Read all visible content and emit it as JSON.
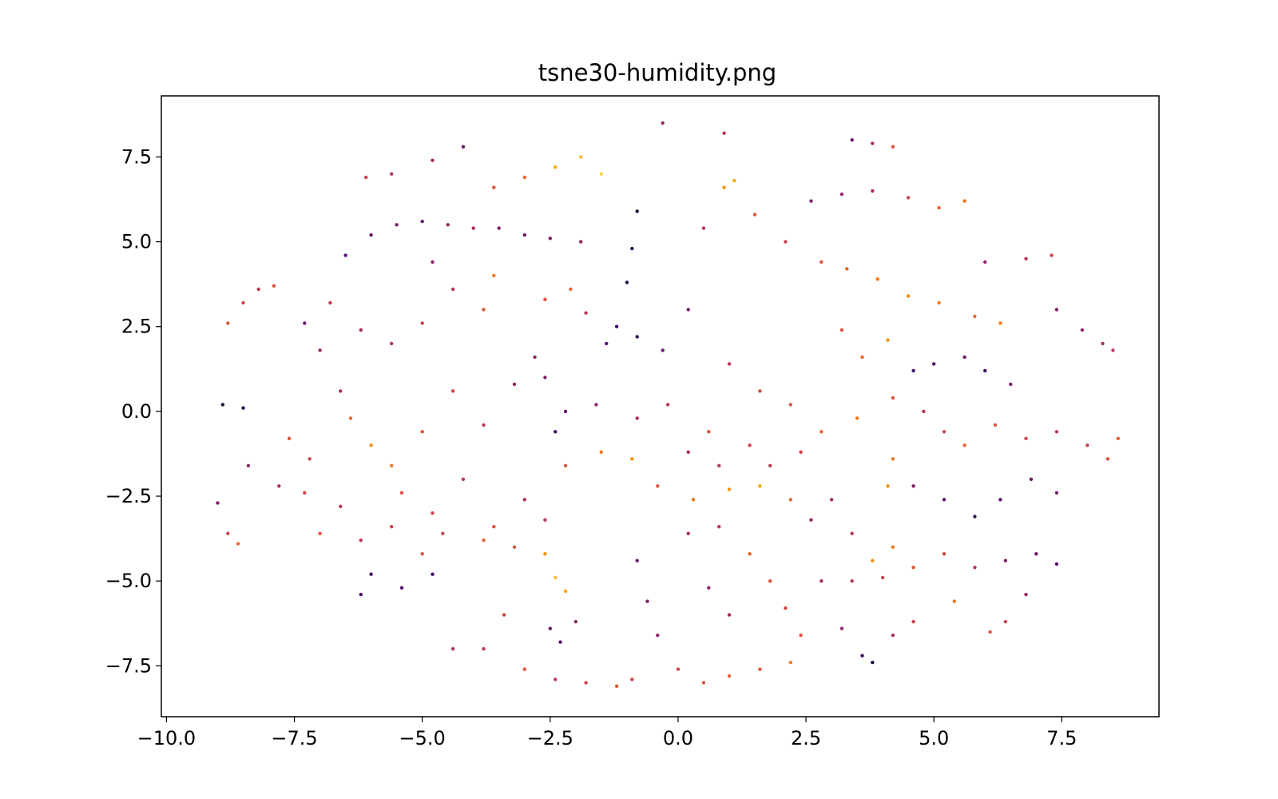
{
  "chart_data": {
    "type": "scatter",
    "title": "tsne30-humidity.png",
    "xlabel": "",
    "ylabel": "",
    "xlim": [
      -10.1,
      9.4
    ],
    "ylim": [
      -9.0,
      9.3
    ],
    "xticks": [
      -10.0,
      -7.5,
      -5.0,
      -2.5,
      0.0,
      2.5,
      5.0,
      7.5
    ],
    "yticks": [
      -7.5,
      -5.0,
      -2.5,
      0.0,
      2.5,
      5.0,
      7.5
    ],
    "xtick_labels": [
      "−10.0",
      "−7.5",
      "−5.0",
      "−2.5",
      "0.0",
      "2.5",
      "5.0",
      "7.5"
    ],
    "ytick_labels": [
      "−7.5",
      "−5.0",
      "−2.5",
      "0.0",
      "2.5",
      "5.0",
      "7.5"
    ],
    "colormap": "inferno",
    "colormap_stops": [
      "#000004",
      "#1b0c41",
      "#4a0c6b",
      "#781c6d",
      "#a52c60",
      "#cf4446",
      "#ed6925",
      "#fb9b06",
      "#f7d13d",
      "#fcffa4"
    ],
    "color_value_range": [
      0,
      1
    ],
    "grid": false,
    "legend": "none",
    "series": [
      {
        "points": [
          [
            -8.8,
            2.6,
            0.6
          ],
          [
            -8.5,
            3.2,
            0.55
          ],
          [
            -8.2,
            3.6,
            0.5
          ],
          [
            -7.9,
            3.7,
            0.6
          ],
          [
            -7.3,
            2.6,
            0.3
          ],
          [
            -7.0,
            1.8,
            0.4
          ],
          [
            -6.5,
            4.6,
            0.25
          ],
          [
            -6.0,
            5.2,
            0.3
          ],
          [
            -5.5,
            5.5,
            0.35
          ],
          [
            -5.0,
            5.6,
            0.3
          ],
          [
            -4.5,
            5.5,
            0.4
          ],
          [
            -4.0,
            5.4,
            0.45
          ],
          [
            -3.5,
            5.4,
            0.35
          ],
          [
            -3.0,
            5.2,
            0.3
          ],
          [
            -2.5,
            5.1,
            0.35
          ],
          [
            -1.9,
            5.0,
            0.4
          ],
          [
            -6.8,
            3.2,
            0.5
          ],
          [
            -6.2,
            2.4,
            0.45
          ],
          [
            -5.6,
            2.0,
            0.5
          ],
          [
            -5.0,
            2.6,
            0.55
          ],
          [
            -4.4,
            3.6,
            0.5
          ],
          [
            -3.8,
            3.0,
            0.6
          ],
          [
            -3.6,
            4.0,
            0.7
          ],
          [
            -4.8,
            4.4,
            0.4
          ],
          [
            -4.2,
            7.8,
            0.3
          ],
          [
            -4.8,
            7.4,
            0.45
          ],
          [
            -5.6,
            7.0,
            0.5
          ],
          [
            -6.1,
            6.9,
            0.55
          ],
          [
            -3.6,
            6.6,
            0.6
          ],
          [
            -3.0,
            6.9,
            0.65
          ],
          [
            -2.4,
            7.2,
            0.8
          ],
          [
            -1.9,
            7.5,
            0.85
          ],
          [
            -1.5,
            7.0,
            0.9
          ],
          [
            -0.3,
            8.5,
            0.4
          ],
          [
            0.9,
            8.2,
            0.5
          ],
          [
            -0.8,
            5.9,
            0.1
          ],
          [
            -0.9,
            4.8,
            0.15
          ],
          [
            -1.0,
            3.8,
            0.12
          ],
          [
            -1.2,
            2.5,
            0.2
          ],
          [
            -1.4,
            2.0,
            0.25
          ],
          [
            -0.8,
            2.2,
            0.15
          ],
          [
            -0.3,
            1.8,
            0.3
          ],
          [
            0.2,
            3.0,
            0.35
          ],
          [
            -2.6,
            3.3,
            0.6
          ],
          [
            -2.1,
            3.6,
            0.65
          ],
          [
            -1.8,
            2.9,
            0.5
          ],
          [
            -2.8,
            1.6,
            0.4
          ],
          [
            0.5,
            5.4,
            0.5
          ],
          [
            0.9,
            6.6,
            0.75
          ],
          [
            1.1,
            6.8,
            0.8
          ],
          [
            1.5,
            5.8,
            0.6
          ],
          [
            2.1,
            5.0,
            0.55
          ],
          [
            2.8,
            4.4,
            0.6
          ],
          [
            3.3,
            4.2,
            0.65
          ],
          [
            3.9,
            3.9,
            0.7
          ],
          [
            4.5,
            3.4,
            0.75
          ],
          [
            5.1,
            3.2,
            0.7
          ],
          [
            5.8,
            2.8,
            0.65
          ],
          [
            6.3,
            2.6,
            0.7
          ],
          [
            2.6,
            6.2,
            0.35
          ],
          [
            3.2,
            6.4,
            0.4
          ],
          [
            3.8,
            6.5,
            0.45
          ],
          [
            4.5,
            6.3,
            0.55
          ],
          [
            5.1,
            6.0,
            0.65
          ],
          [
            5.6,
            6.2,
            0.7
          ],
          [
            3.4,
            8.0,
            0.3
          ],
          [
            3.8,
            7.9,
            0.45
          ],
          [
            4.2,
            7.8,
            0.6
          ],
          [
            6.0,
            4.4,
            0.4
          ],
          [
            6.8,
            4.5,
            0.5
          ],
          [
            7.3,
            4.6,
            0.55
          ],
          [
            7.4,
            3.0,
            0.35
          ],
          [
            7.9,
            2.4,
            0.4
          ],
          [
            8.3,
            2.0,
            0.45
          ],
          [
            8.5,
            1.8,
            0.5
          ],
          [
            3.2,
            2.4,
            0.6
          ],
          [
            3.6,
            1.6,
            0.65
          ],
          [
            4.1,
            2.1,
            0.75
          ],
          [
            4.6,
            1.2,
            0.2
          ],
          [
            5.0,
            1.4,
            0.25
          ],
          [
            5.6,
            1.6,
            0.3
          ],
          [
            6.0,
            1.2,
            0.2
          ],
          [
            6.5,
            0.8,
            0.35
          ],
          [
            1.0,
            1.4,
            0.5
          ],
          [
            1.6,
            0.6,
            0.55
          ],
          [
            2.2,
            0.2,
            0.6
          ],
          [
            2.8,
            -0.6,
            0.65
          ],
          [
            3.5,
            -0.2,
            0.7
          ],
          [
            4.2,
            0.4,
            0.6
          ],
          [
            -6.4,
            -0.2,
            0.65
          ],
          [
            -6.0,
            -1.0,
            0.75
          ],
          [
            -5.6,
            -1.6,
            0.7
          ],
          [
            -5.0,
            -0.6,
            0.6
          ],
          [
            -4.4,
            0.6,
            0.55
          ],
          [
            -3.8,
            -0.4,
            0.5
          ],
          [
            -3.2,
            0.8,
            0.4
          ],
          [
            -2.6,
            1.0,
            0.35
          ],
          [
            -2.2,
            0.0,
            0.3
          ],
          [
            -2.4,
            -0.6,
            0.2
          ],
          [
            -1.6,
            0.2,
            0.4
          ],
          [
            -0.8,
            -0.2,
            0.45
          ],
          [
            -0.2,
            0.2,
            0.5
          ],
          [
            0.6,
            -0.6,
            0.6
          ],
          [
            -5.4,
            -2.4,
            0.6
          ],
          [
            -4.8,
            -3.0,
            0.55
          ],
          [
            -4.2,
            -2.0,
            0.5
          ],
          [
            -3.6,
            -3.4,
            0.6
          ],
          [
            -3.0,
            -2.6,
            0.45
          ],
          [
            -2.6,
            -3.2,
            0.5
          ],
          [
            -2.2,
            -1.6,
            0.6
          ],
          [
            -1.5,
            -1.2,
            0.7
          ],
          [
            -0.9,
            -1.4,
            0.75
          ],
          [
            -0.4,
            -2.2,
            0.6
          ],
          [
            0.3,
            -2.6,
            0.7
          ],
          [
            1.0,
            -2.3,
            0.75
          ],
          [
            1.6,
            -2.2,
            0.8
          ],
          [
            2.2,
            -2.6,
            0.65
          ],
          [
            -9.0,
            -2.7,
            0.35
          ],
          [
            -8.8,
            -3.6,
            0.55
          ],
          [
            -8.6,
            -3.9,
            0.65
          ],
          [
            -8.4,
            -1.6,
            0.4
          ],
          [
            -7.8,
            -2.2,
            0.45
          ],
          [
            -7.3,
            -2.4,
            0.55
          ],
          [
            -7.0,
            -3.6,
            0.6
          ],
          [
            -6.6,
            -2.8,
            0.5
          ],
          [
            -8.9,
            0.2,
            0.1
          ],
          [
            -8.5,
            0.1,
            0.15
          ],
          [
            -6.2,
            -3.8,
            0.5
          ],
          [
            -5.6,
            -3.4,
            0.55
          ],
          [
            -5.0,
            -4.2,
            0.6
          ],
          [
            -4.6,
            -3.6,
            0.55
          ],
          [
            -3.8,
            -3.8,
            0.65
          ],
          [
            -3.2,
            -4.0,
            0.6
          ],
          [
            -2.6,
            -4.2,
            0.75
          ],
          [
            -2.4,
            -4.9,
            0.85
          ],
          [
            -2.2,
            -5.3,
            0.8
          ],
          [
            -6.0,
            -4.8,
            0.2
          ],
          [
            -5.4,
            -5.2,
            0.25
          ],
          [
            -4.8,
            -4.8,
            0.2
          ],
          [
            -6.2,
            -5.4,
            0.25
          ],
          [
            -2.5,
            -6.4,
            0.3
          ],
          [
            -2.3,
            -6.8,
            0.25
          ],
          [
            -2.0,
            -6.2,
            0.4
          ],
          [
            -3.4,
            -6.0,
            0.55
          ],
          [
            -3.8,
            -7.0,
            0.5
          ],
          [
            -3.0,
            -7.6,
            0.6
          ],
          [
            -2.4,
            -7.9,
            0.5
          ],
          [
            -1.8,
            -8.0,
            0.55
          ],
          [
            -1.2,
            -8.1,
            0.6
          ],
          [
            -4.4,
            -7.0,
            0.45
          ],
          [
            -0.9,
            -7.9,
            0.55
          ],
          [
            -0.8,
            -4.4,
            0.3
          ],
          [
            -0.6,
            -5.6,
            0.35
          ],
          [
            -0.4,
            -6.6,
            0.4
          ],
          [
            0.0,
            -7.6,
            0.55
          ],
          [
            0.5,
            -8.0,
            0.6
          ],
          [
            1.0,
            -7.8,
            0.65
          ],
          [
            1.6,
            -7.6,
            0.6
          ],
          [
            2.2,
            -7.4,
            0.7
          ],
          [
            0.2,
            -3.6,
            0.45
          ],
          [
            0.8,
            -3.4,
            0.5
          ],
          [
            1.4,
            -4.2,
            0.65
          ],
          [
            1.8,
            -5.0,
            0.6
          ],
          [
            2.1,
            -5.8,
            0.55
          ],
          [
            2.4,
            -6.6,
            0.6
          ],
          [
            0.6,
            -5.2,
            0.4
          ],
          [
            1.0,
            -6.0,
            0.45
          ],
          [
            2.6,
            -3.2,
            0.4
          ],
          [
            3.0,
            -2.6,
            0.45
          ],
          [
            3.4,
            -3.6,
            0.5
          ],
          [
            3.8,
            -4.4,
            0.75
          ],
          [
            4.2,
            -4.0,
            0.7
          ],
          [
            2.8,
            -5.0,
            0.45
          ],
          [
            3.4,
            -5.0,
            0.5
          ],
          [
            4.0,
            -4.9,
            0.55
          ],
          [
            4.6,
            -4.6,
            0.6
          ],
          [
            5.2,
            -4.2,
            0.55
          ],
          [
            5.8,
            -4.6,
            0.5
          ],
          [
            6.4,
            -4.4,
            0.35
          ],
          [
            7.0,
            -4.2,
            0.3
          ],
          [
            7.4,
            -4.5,
            0.25
          ],
          [
            6.8,
            -5.4,
            0.4
          ],
          [
            6.4,
            -6.2,
            0.55
          ],
          [
            6.1,
            -6.5,
            0.6
          ],
          [
            5.4,
            -5.6,
            0.7
          ],
          [
            3.2,
            -6.4,
            0.4
          ],
          [
            3.6,
            -7.2,
            0.2
          ],
          [
            3.8,
            -7.4,
            0.1
          ],
          [
            4.2,
            -6.6,
            0.45
          ],
          [
            4.6,
            -6.2,
            0.55
          ],
          [
            4.8,
            0.0,
            0.5
          ],
          [
            5.2,
            -0.6,
            0.55
          ],
          [
            5.6,
            -1.0,
            0.65
          ],
          [
            6.2,
            -0.4,
            0.6
          ],
          [
            6.8,
            -0.8,
            0.55
          ],
          [
            7.4,
            -0.6,
            0.5
          ],
          [
            8.0,
            -1.0,
            0.55
          ],
          [
            8.4,
            -1.4,
            0.6
          ],
          [
            8.6,
            -0.8,
            0.65
          ],
          [
            4.6,
            -2.2,
            0.35
          ],
          [
            5.2,
            -2.6,
            0.25
          ],
          [
            5.8,
            -3.1,
            0.15
          ],
          [
            6.3,
            -2.6,
            0.25
          ],
          [
            6.9,
            -2.0,
            0.3
          ],
          [
            7.4,
            -2.4,
            0.35
          ],
          [
            4.2,
            -1.4,
            0.7
          ],
          [
            4.1,
            -2.2,
            0.75
          ],
          [
            0.2,
            -1.2,
            0.45
          ],
          [
            0.8,
            -1.6,
            0.5
          ],
          [
            1.4,
            -1.0,
            0.55
          ],
          [
            1.8,
            -1.6,
            0.5
          ],
          [
            2.4,
            -1.2,
            0.55
          ],
          [
            -7.6,
            -0.8,
            0.6
          ],
          [
            -7.2,
            -1.4,
            0.55
          ],
          [
            -6.6,
            0.6,
            0.45
          ]
        ]
      }
    ]
  }
}
